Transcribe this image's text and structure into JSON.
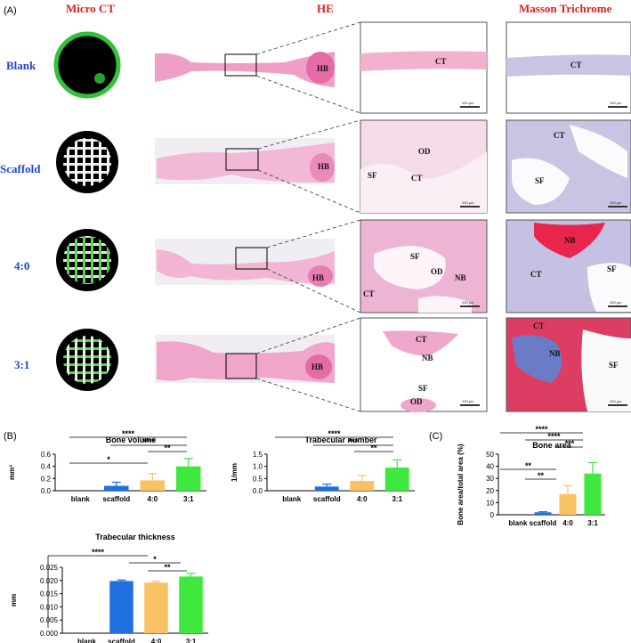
{
  "panel_labels": {
    "a": "(A)",
    "b": "(B)",
    "c": "(C)"
  },
  "columns": {
    "micro_ct": "Micro CT",
    "he": "HE",
    "masson": "Masson Trichrome"
  },
  "rows": [
    {
      "label": "Blank",
      "he_hb": "HB",
      "he_labels": [
        "CT"
      ],
      "mt_labels": [
        "CT"
      ]
    },
    {
      "label": "Scaffold",
      "he_hb": "HB",
      "he_labels": [
        "OD",
        "SF",
        "CT"
      ],
      "mt_labels": [
        "CT",
        "SF"
      ]
    },
    {
      "label": "4:0",
      "he_hb": "HB",
      "he_labels": [
        "SF",
        "OD",
        "NB",
        "CT"
      ],
      "mt_labels": [
        "NB",
        "CT",
        "SF"
      ]
    },
    {
      "label": "3:1",
      "he_hb": "HB",
      "he_labels": [
        "CT",
        "NB",
        "SF",
        "OD"
      ],
      "mt_labels": [
        "CT",
        "NB",
        "SF"
      ]
    }
  ],
  "scale_bar": "100 μm",
  "colors": {
    "blank": "#2b73e0",
    "scaffold": "#1f6fe0",
    "4to0": "#f8c163",
    "3to1": "#3fe83f",
    "heading_red": "#d81e1e",
    "label_blue": "#2147c8"
  },
  "chart_data": [
    {
      "type": "bar",
      "title": "Bone volume",
      "ylabel": "mm³",
      "categories": [
        "blank",
        "scaffold",
        "4:0",
        "3:1"
      ],
      "values": [
        0.0,
        0.08,
        0.17,
        0.4
      ],
      "errors": [
        0.0,
        0.06,
        0.11,
        0.13
      ],
      "ylim": [
        0,
        0.6
      ],
      "yticks": [
        "0.0",
        "0.2",
        "0.4",
        "0.6"
      ],
      "significance": [
        "****",
        "****",
        "**",
        "*"
      ]
    },
    {
      "type": "bar",
      "title": "Trabecular number",
      "ylabel": "1/mm",
      "categories": [
        "blank",
        "scaffold",
        "4:0",
        "3:1"
      ],
      "values": [
        0.0,
        0.17,
        0.4,
        0.95
      ],
      "errors": [
        0.0,
        0.1,
        0.22,
        0.32
      ],
      "ylim": [
        0,
        1.5
      ],
      "yticks": [
        "0.0",
        "0.5",
        "1.0",
        "1.5"
      ],
      "significance": [
        "****",
        "***",
        "**"
      ]
    },
    {
      "type": "bar",
      "title": "Bone area",
      "ylabel": "Bone area/total area (%)",
      "categories": [
        "blank",
        "scaffold",
        "4:0",
        "3:1"
      ],
      "values": [
        0,
        2,
        17,
        34
      ],
      "errors": [
        0,
        0.5,
        7,
        9
      ],
      "ylim": [
        0,
        50
      ],
      "yticks": [
        "0",
        "10",
        "20",
        "30",
        "40",
        "50"
      ],
      "significance": [
        "****",
        "****",
        "***",
        "**",
        "**"
      ]
    },
    {
      "type": "bar",
      "title": "Trabecular thickness",
      "ylabel": "mm",
      "categories": [
        "blank",
        "scaffold",
        "4:0",
        "3:1"
      ],
      "values": [
        0.0,
        0.0198,
        0.0192,
        0.0215
      ],
      "errors": [
        0.0,
        0.0004,
        0.0005,
        0.0012
      ],
      "ylim": [
        0,
        0.025
      ],
      "yticks": [
        "0.000",
        "0.005",
        "0.010",
        "0.015",
        "0.020",
        "0.025"
      ],
      "significance": [
        "****",
        "*",
        "**"
      ]
    }
  ]
}
